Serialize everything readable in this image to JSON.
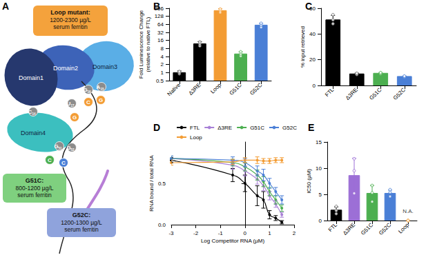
{
  "panel_labels": [
    "A",
    "B",
    "C",
    "D",
    "E"
  ],
  "diagram": {
    "domains": [
      "Domain1",
      "Domain2",
      "Domain3",
      "Domain4"
    ],
    "boxes": [
      {
        "title": "Loop mutant:",
        "lines": [
          "1200-2300 µg/L",
          "serum ferritin"
        ],
        "color": "#f4a23c"
      },
      {
        "title": "G51C:",
        "lines": [
          "800-1200 µg/L",
          "serum ferritin"
        ],
        "color": "#7fd07f"
      },
      {
        "title": "G52C:",
        "lines": [
          "1200-1300 µg/L",
          "serum ferritin"
        ],
        "color": "#8fa3dc"
      }
    ],
    "nucleotides": [
      {
        "letter": "G",
        "index": "16",
        "color": "#8c8c8c"
      },
      {
        "letter": "A",
        "index": "15",
        "color": "#8c8c8c"
      },
      {
        "letter": "U",
        "index": "17",
        "color": "#8c8c8c"
      },
      {
        "letter": "C",
        "index": "14",
        "color": "#8c8c8c"
      },
      {
        "letter": "C",
        "color": "#f39c34"
      },
      {
        "letter": "G",
        "color": "#f39c34"
      },
      {
        "letter": "G",
        "color": "#f39c34"
      },
      {
        "letter": "G",
        "index": "51",
        "color": "#8c8c8c"
      },
      {
        "letter": "G",
        "index": "52",
        "color": "#8c8c8c"
      },
      {
        "letter": "C",
        "color": "#4caf50"
      },
      {
        "letter": "C",
        "color": "#4a7fd6"
      }
    ]
  },
  "chart_data": [
    {
      "type": "bar",
      "y_label": [
        "Fold Luminescence Change",
        "(relative to native FTL)"
      ],
      "categories": [
        "Native",
        "Δ3RE",
        "Loop",
        "G51C",
        "G52C"
      ],
      "values": [
        1,
        12,
        210,
        5,
        60
      ],
      "errors": [
        0.15,
        2.5,
        40,
        1,
        10
      ],
      "points": [
        [
          0.9,
          1,
          1.1
        ],
        [
          10,
          12,
          14
        ],
        [
          180,
          210,
          240
        ],
        [
          4.2,
          5,
          6
        ],
        [
          50,
          60,
          70
        ]
      ],
      "colors": [
        "#000000",
        "#000000",
        "#f39c34",
        "#4caf50",
        "#4a7fd6"
      ],
      "log": "y",
      "ylim": [
        0.5,
        256
      ],
      "yticks": [
        0.5,
        1,
        2,
        4,
        8,
        16,
        32,
        64,
        128,
        256
      ],
      "grid": false
    },
    {
      "type": "bar",
      "y_label": "% input retrieved",
      "categories": [
        "FTL",
        "Δ3RE",
        "G51C",
        "G52C"
      ],
      "values": [
        51,
        9,
        9.5,
        7
      ],
      "errors": [
        3.5,
        0.6,
        0.6,
        0.4
      ],
      "points": [
        [
          48,
          51,
          55
        ],
        [
          8.5,
          9,
          9.5
        ],
        [
          9,
          9.5,
          10
        ],
        [
          6.6,
          7,
          7.3
        ]
      ],
      "colors": [
        "#000000",
        "#000000",
        "#4caf50",
        "#4a7fd6"
      ],
      "ylim": [
        0,
        60
      ],
      "yticks": [
        0,
        20,
        40,
        60
      ],
      "grid": false
    },
    {
      "type": "line",
      "x_label": "Log Competitor RNA (µM)",
      "y_label": "RNA bound / total RNA",
      "x": [
        -3,
        -0.5,
        0,
        0.5,
        0.75,
        1,
        1.25,
        1.5
      ],
      "series": [
        {
          "name": "FTL",
          "color": "#000000",
          "values": [
            0.78,
            0.6,
            0.5,
            0.35,
            0.3,
            0.12,
            0.08,
            0.03
          ],
          "errors": [
            0.03,
            0.08,
            0.1,
            0.12,
            0.1,
            0.05,
            0.03,
            0.02
          ]
        },
        {
          "name": "Δ3RE",
          "color": "#a77fd6",
          "values": [
            0.8,
            0.72,
            0.65,
            0.55,
            0.47,
            0.35,
            0.25,
            0.12
          ],
          "errors": [
            0.03,
            0.05,
            0.06,
            0.06,
            0.06,
            0.05,
            0.04,
            0.03
          ]
        },
        {
          "name": "G51C",
          "color": "#4caf50",
          "values": [
            0.8,
            0.75,
            0.7,
            0.6,
            0.52,
            0.4,
            0.3,
            0.2
          ],
          "errors": [
            0.03,
            0.04,
            0.05,
            0.06,
            0.06,
            0.05,
            0.05,
            0.04
          ]
        },
        {
          "name": "G52C",
          "color": "#4a7fd6",
          "values": [
            0.8,
            0.78,
            0.75,
            0.65,
            0.6,
            0.5,
            0.4,
            0.3
          ],
          "errors": [
            0.03,
            0.04,
            0.05,
            0.06,
            0.07,
            0.06,
            0.05,
            0.05
          ]
        },
        {
          "name": "Loop",
          "color": "#f39c34",
          "values": [
            0.75,
            0.76,
            0.78,
            0.78,
            0.77,
            0.77,
            0.78,
            0.78
          ],
          "errors": [
            0.03,
            0.03,
            0.03,
            0.04,
            0.03,
            0.03,
            0.03,
            0.03
          ]
        }
      ],
      "xlim": [
        -3,
        2
      ],
      "xticks": [
        -3,
        -2,
        -1,
        0,
        1,
        2
      ],
      "ylim": [
        0,
        1
      ],
      "yticks": [
        {
          "value": 0,
          "label": "0.0"
        },
        {
          "value": 0.5,
          "label": "0.5"
        }
      ],
      "legend": "upper left",
      "marker": "circle",
      "grid": false
    },
    {
      "type": "bar",
      "y_label": "IC50 (µM)",
      "categories": [
        "FTL",
        "Δ3RE",
        "G51C",
        "G52C",
        "Loop"
      ],
      "values": [
        2,
        8.6,
        5.2,
        5.2,
        null
      ],
      "errors": [
        0.6,
        3.3,
        1.5,
        0.6,
        null
      ],
      "points": [
        [
          1.3,
          1.9,
          2.7
        ],
        [
          5.2,
          9.5,
          11.8
        ],
        [
          3.6,
          5.3,
          6.7
        ],
        [
          4.6,
          5.4,
          5.9
        ],
        [
          0,
          0,
          0
        ]
      ],
      "colors": [
        "#000000",
        "#9c6fd6",
        "#4caf50",
        "#4a7fd6",
        "#f39c34"
      ],
      "annotations": [
        {
          "x": "Loop",
          "text": "N.A."
        }
      ],
      "ylim": [
        0,
        15
      ],
      "yticks": [
        0,
        5,
        10,
        15
      ],
      "grid": false
    }
  ]
}
